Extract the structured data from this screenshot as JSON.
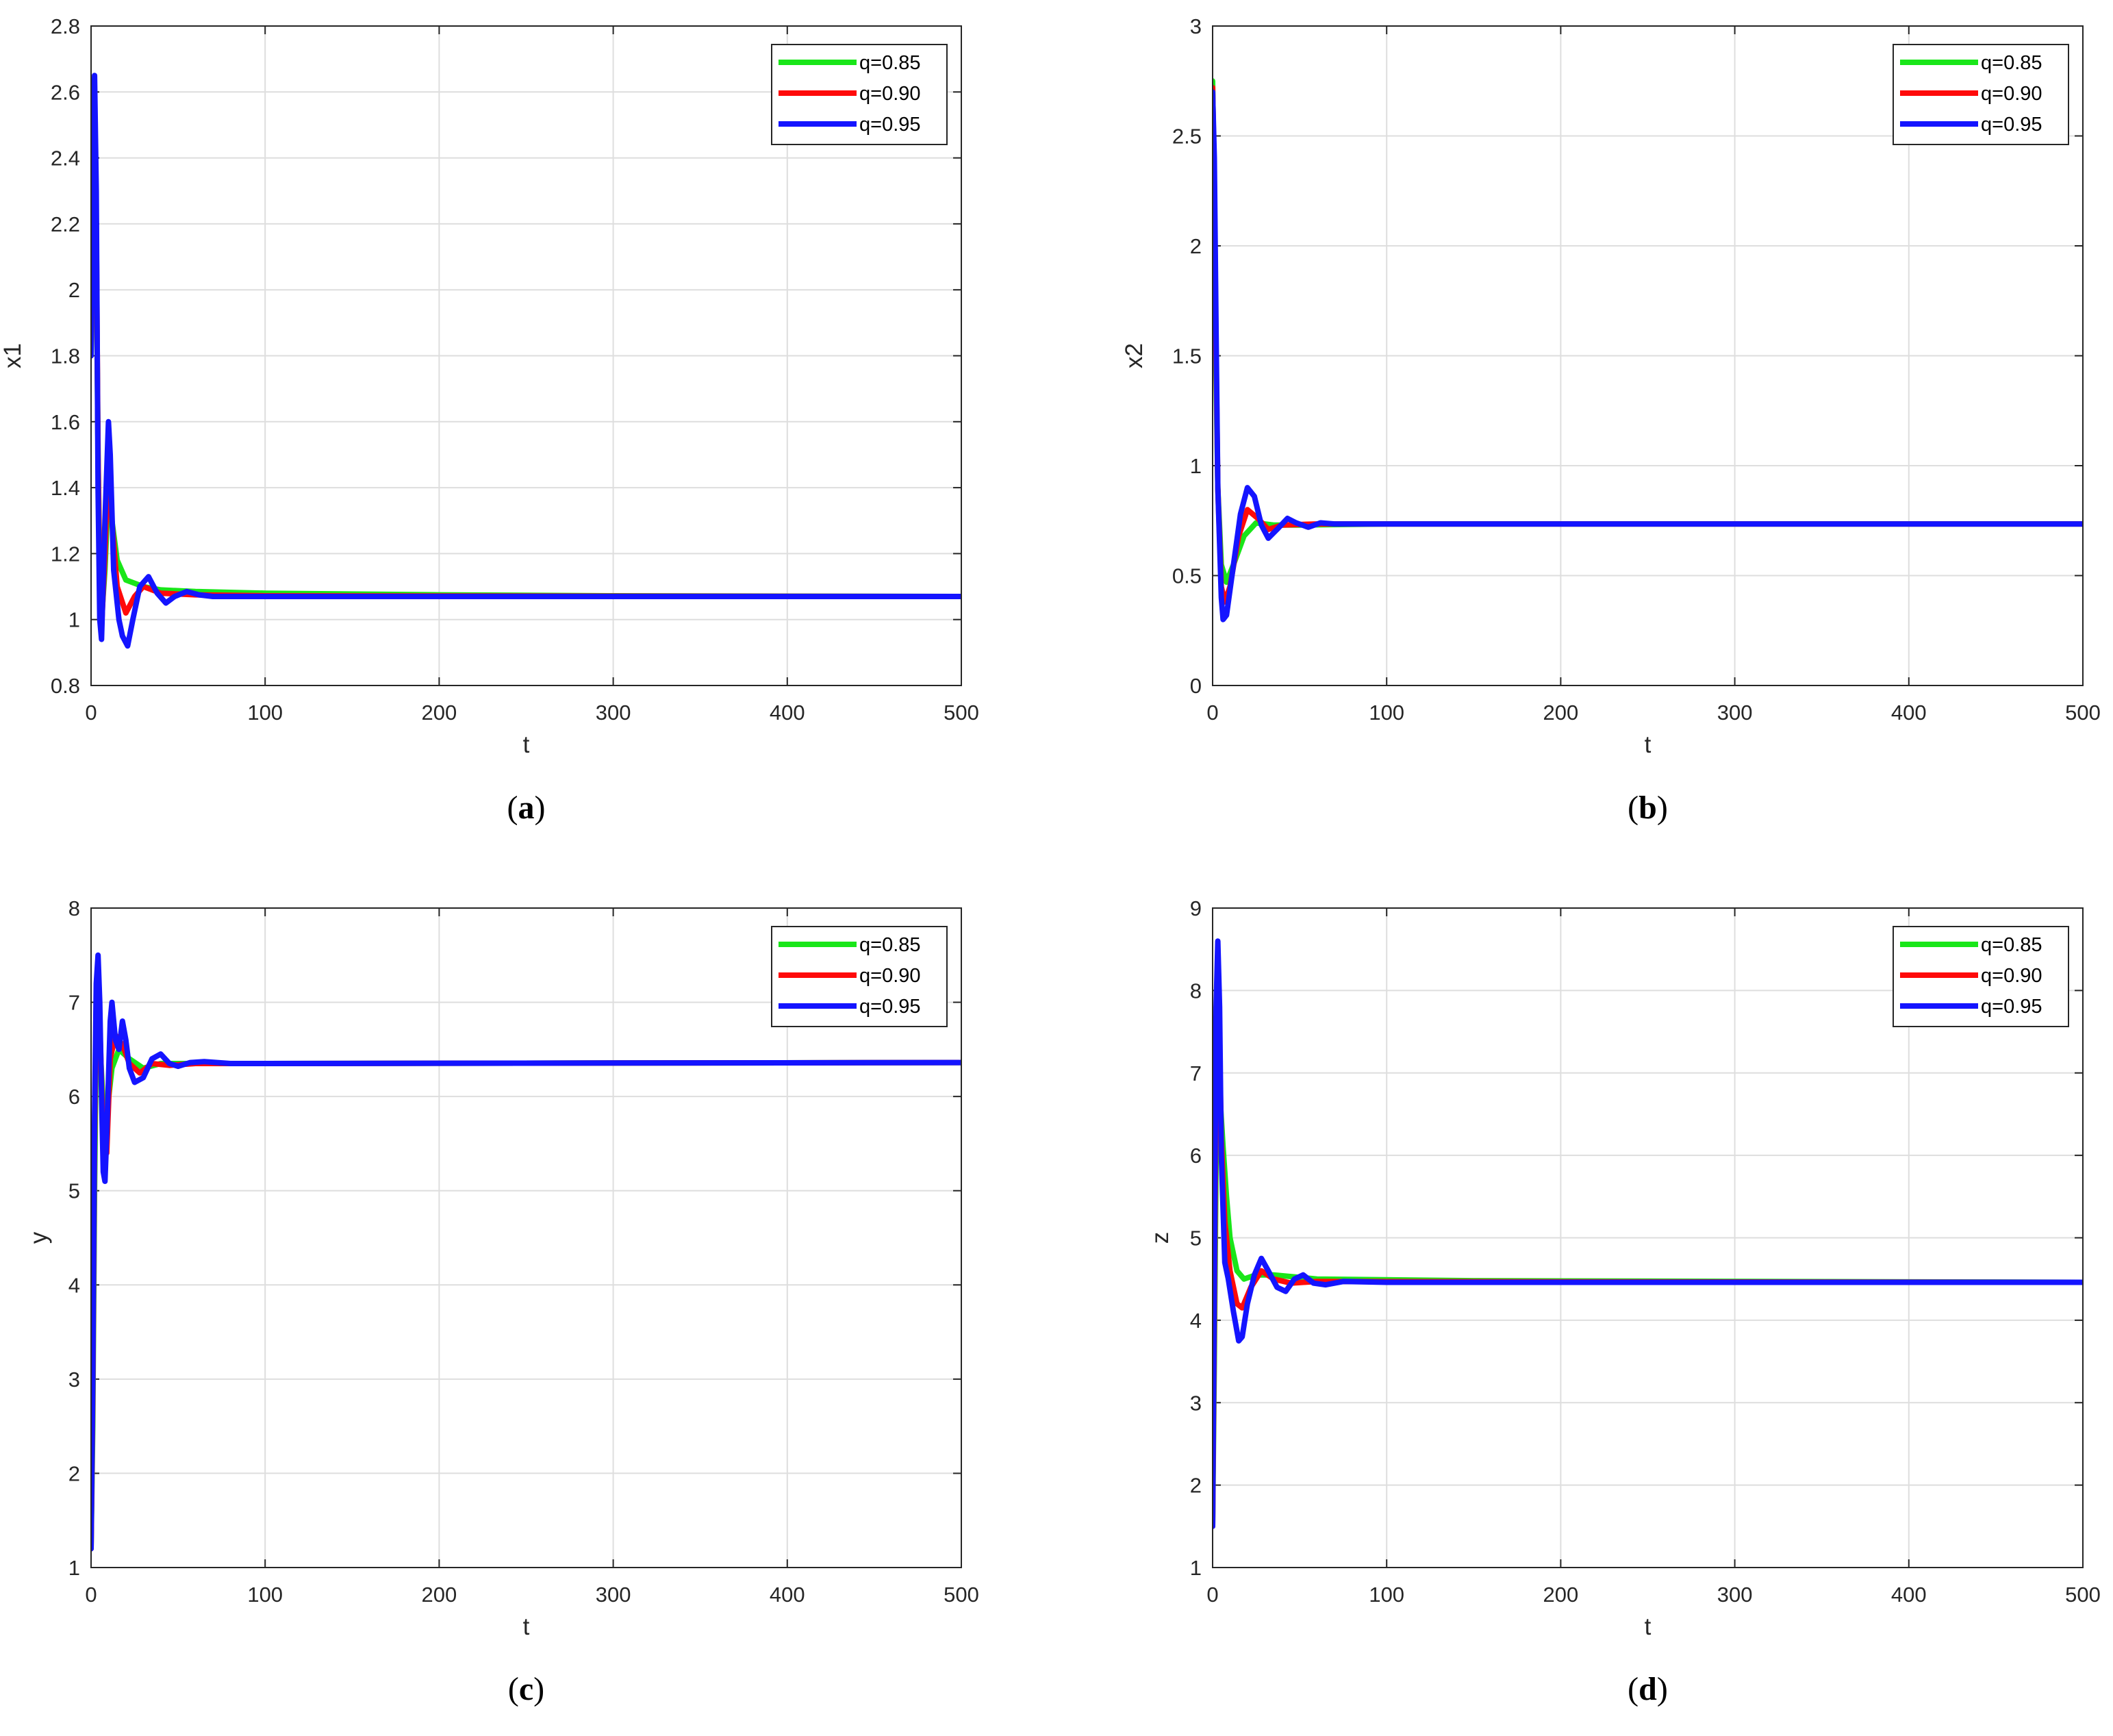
{
  "figure": {
    "colors": {
      "q085": "#19e619",
      "q090": "#ff0a0a",
      "q095": "#1414ff"
    }
  },
  "chart_data": [
    {
      "type": "line",
      "caption_letter": "a",
      "xlabel": "t",
      "ylabel": "x1",
      "xlim": [
        0,
        500
      ],
      "ylim": [
        0.8,
        2.8
      ],
      "xticks": [
        "0",
        "100",
        "200",
        "300",
        "400",
        "500"
      ],
      "yticks": [
        "0.8",
        "1",
        "1.2",
        "1.4",
        "1.6",
        "1.8",
        "2",
        "2.2",
        "2.4",
        "2.6",
        "2.8"
      ],
      "grid": true,
      "legend_position": "top-right",
      "series": [
        {
          "name": "q=0.85",
          "color": "#19e619",
          "points": [
            [
              0,
              1.8
            ],
            [
              1,
              2.3
            ],
            [
              2,
              2.5
            ],
            [
              3,
              2.1
            ],
            [
              4,
              1.5
            ],
            [
              5,
              1.15
            ],
            [
              6,
              1.0
            ],
            [
              8,
              1.15
            ],
            [
              10,
              1.4
            ],
            [
              12,
              1.3
            ],
            [
              15,
              1.18
            ],
            [
              20,
              1.12
            ],
            [
              30,
              1.1
            ],
            [
              40,
              1.09
            ],
            [
              60,
              1.085
            ],
            [
              100,
              1.08
            ],
            [
              200,
              1.075
            ],
            [
              300,
              1.072
            ],
            [
              500,
              1.07
            ]
          ]
        },
        {
          "name": "q=0.90",
          "color": "#ff0a0a",
          "points": [
            [
              0,
              1.8
            ],
            [
              1,
              2.4
            ],
            [
              2,
              2.58
            ],
            [
              3,
              2.2
            ],
            [
              4,
              1.5
            ],
            [
              5,
              1.1
            ],
            [
              6,
              0.97
            ],
            [
              8,
              1.2
            ],
            [
              10,
              1.5
            ],
            [
              12,
              1.3
            ],
            [
              15,
              1.1
            ],
            [
              20,
              1.02
            ],
            [
              25,
              1.07
            ],
            [
              30,
              1.1
            ],
            [
              40,
              1.08
            ],
            [
              60,
              1.075
            ],
            [
              100,
              1.072
            ],
            [
              500,
              1.07
            ]
          ]
        },
        {
          "name": "q=0.95",
          "color": "#1414ff",
          "points": [
            [
              0,
              1.8
            ],
            [
              1,
              2.4
            ],
            [
              2,
              2.65
            ],
            [
              3,
              2.3
            ],
            [
              4,
              1.4
            ],
            [
              5,
              1.0
            ],
            [
              6,
              0.94
            ],
            [
              8,
              1.3
            ],
            [
              10,
              1.6
            ],
            [
              11,
              1.5
            ],
            [
              13,
              1.15
            ],
            [
              16,
              1.0
            ],
            [
              18,
              0.95
            ],
            [
              21,
              0.92
            ],
            [
              24,
              1.0
            ],
            [
              28,
              1.1
            ],
            [
              33,
              1.13
            ],
            [
              38,
              1.08
            ],
            [
              43,
              1.05
            ],
            [
              48,
              1.07
            ],
            [
              55,
              1.085
            ],
            [
              62,
              1.075
            ],
            [
              70,
              1.07
            ],
            [
              100,
              1.07
            ],
            [
              500,
              1.07
            ]
          ]
        }
      ]
    },
    {
      "type": "line",
      "caption_letter": "b",
      "xlabel": "t",
      "ylabel": "x2",
      "xlim": [
        0,
        500
      ],
      "ylim": [
        0,
        3
      ],
      "xticks": [
        "0",
        "100",
        "200",
        "300",
        "400",
        "500"
      ],
      "yticks": [
        "0",
        "0.5",
        "1",
        "1.5",
        "2",
        "2.5",
        "3"
      ],
      "grid": true,
      "legend_position": "top-right",
      "series": [
        {
          "name": "q=0.85",
          "color": "#19e619",
          "points": [
            [
              0,
              2.75
            ],
            [
              1,
              2.2
            ],
            [
              2,
              1.4
            ],
            [
              3,
              0.9
            ],
            [
              5,
              0.55
            ],
            [
              8,
              0.47
            ],
            [
              12,
              0.55
            ],
            [
              18,
              0.68
            ],
            [
              25,
              0.74
            ],
            [
              35,
              0.73
            ],
            [
              50,
              0.73
            ],
            [
              100,
              0.735
            ],
            [
              500,
              0.735
            ]
          ]
        },
        {
          "name": "q=0.90",
          "color": "#ff0a0a",
          "points": [
            [
              0,
              2.72
            ],
            [
              1,
              2.3
            ],
            [
              2,
              1.5
            ],
            [
              3,
              0.9
            ],
            [
              5,
              0.45
            ],
            [
              7,
              0.38
            ],
            [
              10,
              0.45
            ],
            [
              15,
              0.68
            ],
            [
              20,
              0.8
            ],
            [
              26,
              0.76
            ],
            [
              32,
              0.71
            ],
            [
              40,
              0.73
            ],
            [
              60,
              0.735
            ],
            [
              500,
              0.735
            ]
          ]
        },
        {
          "name": "q=0.95",
          "color": "#1414ff",
          "points": [
            [
              0,
              2.7
            ],
            [
              1,
              2.4
            ],
            [
              2,
              1.6
            ],
            [
              3,
              0.9
            ],
            [
              5,
              0.4
            ],
            [
              6,
              0.3
            ],
            [
              8,
              0.32
            ],
            [
              12,
              0.55
            ],
            [
              16,
              0.78
            ],
            [
              20,
              0.9
            ],
            [
              24,
              0.86
            ],
            [
              28,
              0.73
            ],
            [
              32,
              0.67
            ],
            [
              37,
              0.71
            ],
            [
              43,
              0.76
            ],
            [
              48,
              0.74
            ],
            [
              55,
              0.72
            ],
            [
              62,
              0.74
            ],
            [
              70,
              0.735
            ],
            [
              500,
              0.735
            ]
          ]
        }
      ]
    },
    {
      "type": "line",
      "caption_letter": "c",
      "xlabel": "t",
      "ylabel": "y",
      "xlim": [
        0,
        500
      ],
      "ylim": [
        1,
        8
      ],
      "xticks": [
        "0",
        "100",
        "200",
        "300",
        "400",
        "500"
      ],
      "yticks": [
        "1",
        "2",
        "3",
        "4",
        "5",
        "6",
        "7",
        "8"
      ],
      "grid": true,
      "legend_position": "top-right",
      "series": [
        {
          "name": "q=0.85",
          "color": "#19e619",
          "points": [
            [
              0,
              1.2
            ],
            [
              1,
              2.5
            ],
            [
              2,
              5.0
            ],
            [
              3,
              6.6
            ],
            [
              4,
              7.1
            ],
            [
              5,
              6.6
            ],
            [
              7,
              5.9
            ],
            [
              9,
              5.8
            ],
            [
              12,
              6.3
            ],
            [
              16,
              6.5
            ],
            [
              22,
              6.4
            ],
            [
              30,
              6.3
            ],
            [
              40,
              6.35
            ],
            [
              60,
              6.35
            ],
            [
              100,
              6.35
            ],
            [
              500,
              6.36
            ]
          ]
        },
        {
          "name": "q=0.90",
          "color": "#ff0a0a",
          "points": [
            [
              0,
              1.2
            ],
            [
              1,
              2.8
            ],
            [
              2,
              5.5
            ],
            [
              3,
              7.0
            ],
            [
              4,
              7.3
            ],
            [
              5,
              6.8
            ],
            [
              7,
              5.5
            ],
            [
              9,
              5.4
            ],
            [
              11,
              6.4
            ],
            [
              14,
              6.65
            ],
            [
              18,
              6.55
            ],
            [
              22,
              6.35
            ],
            [
              28,
              6.25
            ],
            [
              35,
              6.35
            ],
            [
              45,
              6.33
            ],
            [
              60,
              6.35
            ],
            [
              100,
              6.35
            ],
            [
              500,
              6.36
            ]
          ]
        },
        {
          "name": "q=0.95",
          "color": "#1414ff",
          "points": [
            [
              0,
              1.2
            ],
            [
              1,
              3.0
            ],
            [
              2,
              5.8
            ],
            [
              3,
              7.2
            ],
            [
              4,
              7.5
            ],
            [
              5,
              7.0
            ],
            [
              6,
              6.0
            ],
            [
              7,
              5.2
            ],
            [
              8,
              5.1
            ],
            [
              9,
              5.6
            ],
            [
              11,
              6.8
            ],
            [
              12,
              7.0
            ],
            [
              14,
              6.6
            ],
            [
              16,
              6.5
            ],
            [
              18,
              6.8
            ],
            [
              20,
              6.6
            ],
            [
              22,
              6.3
            ],
            [
              25,
              6.15
            ],
            [
              30,
              6.2
            ],
            [
              35,
              6.4
            ],
            [
              40,
              6.45
            ],
            [
              45,
              6.35
            ],
            [
              50,
              6.32
            ],
            [
              57,
              6.36
            ],
            [
              65,
              6.37
            ],
            [
              80,
              6.35
            ],
            [
              100,
              6.35
            ],
            [
              500,
              6.36
            ]
          ]
        }
      ]
    },
    {
      "type": "line",
      "caption_letter": "d",
      "xlabel": "t",
      "ylabel": "z",
      "xlim": [
        0,
        500
      ],
      "ylim": [
        1,
        9
      ],
      "xticks": [
        "0",
        "100",
        "200",
        "300",
        "400",
        "500"
      ],
      "yticks": [
        "1",
        "2",
        "3",
        "4",
        "5",
        "6",
        "7",
        "8",
        "9"
      ],
      "grid": true,
      "legend_position": "top-right",
      "series": [
        {
          "name": "q=0.85",
          "color": "#19e619",
          "points": [
            [
              0,
              1.5
            ],
            [
              1,
              3.5
            ],
            [
              2,
              6.0
            ],
            [
              3,
              7.0
            ],
            [
              4,
              6.8
            ],
            [
              6,
              6.1
            ],
            [
              8,
              5.5
            ],
            [
              10,
              5.0
            ],
            [
              14,
              4.6
            ],
            [
              18,
              4.5
            ],
            [
              25,
              4.55
            ],
            [
              35,
              4.55
            ],
            [
              60,
              4.5
            ],
            [
              150,
              4.48
            ],
            [
              500,
              4.46
            ]
          ]
        },
        {
          "name": "q=0.90",
          "color": "#ff0a0a",
          "points": [
            [
              0,
              1.5
            ],
            [
              1,
              4.0
            ],
            [
              2,
              7.0
            ],
            [
              3,
              7.8
            ],
            [
              4,
              7.3
            ],
            [
              5,
              6.2
            ],
            [
              7,
              5.2
            ],
            [
              10,
              4.6
            ],
            [
              14,
              4.2
            ],
            [
              17,
              4.15
            ],
            [
              22,
              4.4
            ],
            [
              28,
              4.6
            ],
            [
              35,
              4.5
            ],
            [
              45,
              4.45
            ],
            [
              60,
              4.47
            ],
            [
              500,
              4.46
            ]
          ]
        },
        {
          "name": "q=0.95",
          "color": "#1414ff",
          "points": [
            [
              0,
              1.5
            ],
            [
              1,
              4.5
            ],
            [
              2,
              7.8
            ],
            [
              3,
              8.6
            ],
            [
              4,
              7.8
            ],
            [
              5,
              6.0
            ],
            [
              7,
              4.7
            ],
            [
              9,
              4.5
            ],
            [
              12,
              4.1
            ],
            [
              15,
              3.75
            ],
            [
              17,
              3.8
            ],
            [
              20,
              4.2
            ],
            [
              24,
              4.55
            ],
            [
              28,
              4.75
            ],
            [
              32,
              4.6
            ],
            [
              37,
              4.4
            ],
            [
              42,
              4.35
            ],
            [
              47,
              4.5
            ],
            [
              52,
              4.55
            ],
            [
              58,
              4.45
            ],
            [
              65,
              4.43
            ],
            [
              75,
              4.47
            ],
            [
              100,
              4.46
            ],
            [
              500,
              4.46
            ]
          ]
        }
      ]
    }
  ]
}
